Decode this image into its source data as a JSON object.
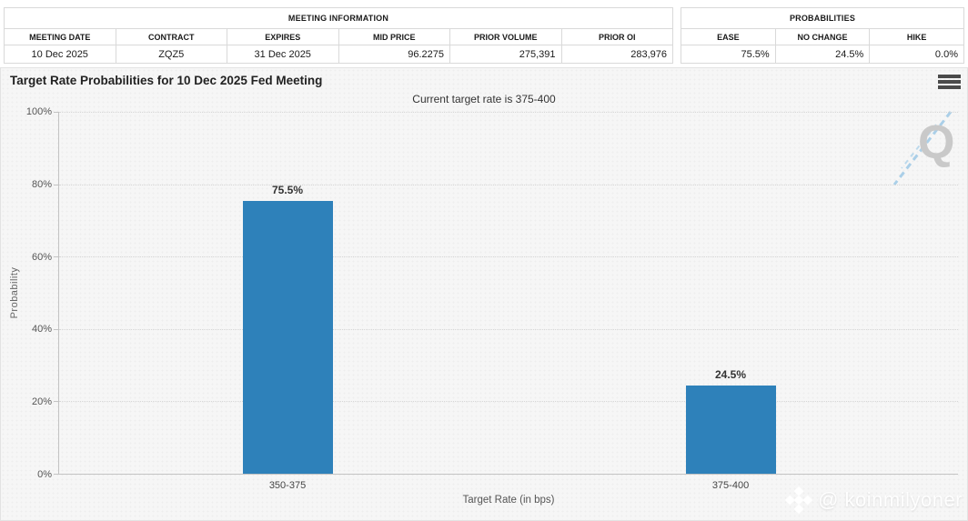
{
  "meeting_information": {
    "title": "MEETING INFORMATION",
    "columns": [
      "MEETING DATE",
      "CONTRACT",
      "EXPIRES",
      "MID PRICE",
      "PRIOR VOLUME",
      "PRIOR OI"
    ],
    "values": [
      "10 Dec 2025",
      "ZQZ5",
      "31 Dec 2025",
      "96.2275",
      "275,391",
      "283,976"
    ]
  },
  "probabilities_table": {
    "title": "PROBABILITIES",
    "columns": [
      "EASE",
      "NO CHANGE",
      "HIKE"
    ],
    "values": [
      "75.5%",
      "24.5%",
      "0.0%"
    ]
  },
  "chart_header": {
    "title": "Target Rate Probabilities for 10 Dec 2025 Fed Meeting",
    "subtitle": "Current target rate is 375-400"
  },
  "watermarks": {
    "logo_letter": "Q",
    "bottom_text": "@ koinmilyoner"
  },
  "chart_data": {
    "type": "bar",
    "title": "Target Rate Probabilities for 10 Dec 2025 Fed Meeting",
    "subtitle": "Current target rate is 375-400",
    "categories": [
      "350-375",
      "375-400"
    ],
    "values": [
      75.5,
      24.5
    ],
    "value_labels": [
      "75.5%",
      "24.5%"
    ],
    "xlabel": "Target Rate (in bps)",
    "ylabel": "Probability",
    "ylim": [
      0,
      100
    ],
    "ytick_labels": [
      "0%",
      "20%",
      "40%",
      "60%",
      "80%",
      "100%"
    ],
    "bar_color": "#2e81ba",
    "grid": "dotted horizontal",
    "legend": "none"
  }
}
